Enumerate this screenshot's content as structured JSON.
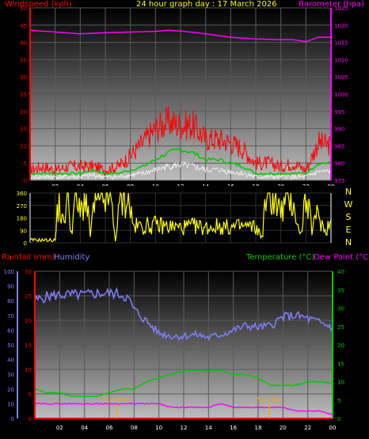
{
  "header": {
    "windspeed_label": "Windspeed (kph)",
    "title": "24 hour graph day : 17 March 2026",
    "barometer_label": "Barometer (hpa)"
  },
  "direction_labels": [
    "N",
    "W",
    "S",
    "E",
    "N"
  ],
  "bottom_header": {
    "rainfall_label": "Rainfall (mm)",
    "humidity_label": "Humidity",
    "temperature_label": "Temperature (°C)",
    "dewpoint_label": "Dew Point (°C)"
  },
  "annotations": {
    "sunrise": "Sun Rise",
    "sunset": "Sun Set"
  },
  "colors": {
    "wind_speed": "#ff0000",
    "wind_avg": "#00cc00",
    "wind_low": "#ffffff",
    "barometer": "#ff00ff",
    "direction": "#ffff00",
    "rainfall": "#ff0000",
    "humidity": "#8080ff",
    "temperature": "#00cc00",
    "dewpoint": "#ff00ff",
    "sun": "#ffa500"
  },
  "chart_data": [
    {
      "type": "line",
      "title": "24 hour graph day : 17 March 2026",
      "x_ticks": [
        "02",
        "04",
        "06",
        "08",
        "10",
        "12",
        "14",
        "16",
        "18",
        "20",
        "22",
        "00"
      ],
      "xlim": [
        0,
        24
      ],
      "y_left": {
        "label": "Windspeed (kph)",
        "ylim": [
          0,
          50
        ],
        "ticks": [
          0,
          5,
          10,
          15,
          20,
          25,
          30,
          35,
          40,
          45,
          50
        ]
      },
      "y_right": {
        "label": "Barometer (hpa)",
        "ylim": [
          975,
          1025
        ],
        "ticks": [
          975,
          980,
          985,
          990,
          995,
          1000,
          1005,
          1010,
          1015,
          1020,
          1025
        ]
      },
      "series": [
        {
          "name": "Windspeed (kph)",
          "axis": "left",
          "x": [
            0,
            1,
            2,
            3,
            4,
            5,
            6,
            7,
            8,
            9,
            10,
            11,
            12,
            13,
            14,
            15,
            16,
            17,
            18,
            19,
            20,
            21,
            22,
            23,
            24
          ],
          "y": [
            3,
            4,
            3,
            4,
            4,
            4,
            3,
            4,
            7,
            11,
            15,
            17,
            16,
            16,
            12,
            12,
            11,
            9,
            5,
            5,
            4,
            5,
            3,
            11,
            10
          ]
        },
        {
          "axis": "left",
          "x": [
            0,
            1,
            2,
            3,
            4,
            5,
            6,
            7,
            8,
            9,
            10,
            11,
            12,
            13,
            14,
            15,
            16,
            17,
            18,
            19,
            20,
            21,
            22,
            23,
            24
          ],
          "y": [
            2,
            2,
            2,
            2,
            2,
            3,
            2,
            2,
            3,
            4,
            6,
            8,
            9,
            8,
            6,
            6,
            5,
            4,
            2,
            2,
            2,
            2,
            2,
            5,
            5
          ]
        },
        {
          "name": "Barometer (hpa)",
          "axis": "right",
          "x": [
            0,
            2,
            4,
            6,
            8,
            10,
            11,
            12,
            14,
            16,
            18,
            20,
            21,
            22,
            23,
            24
          ],
          "y": [
            1018.5,
            1018,
            1017.5,
            1017.8,
            1018,
            1018.2,
            1018.5,
            1018.3,
            1017.5,
            1016.5,
            1016,
            1015.8,
            1015.8,
            1015.2,
            1016.5,
            1016.5
          ]
        }
      ]
    },
    {
      "type": "line",
      "x_ticks": [
        "02",
        "04",
        "06",
        "08",
        "10",
        "12",
        "14",
        "16",
        "18",
        "20",
        "22",
        "00"
      ],
      "xlim": [
        0,
        24
      ],
      "y_left": {
        "ylim": [
          0,
          360
        ],
        "ticks": [
          0,
          90,
          180,
          270,
          360
        ]
      },
      "series": [
        {
          "axis": "left",
          "x": [
            0,
            1,
            2,
            2.3,
            2.6,
            3,
            3.3,
            3.6,
            4,
            4.4,
            4.8,
            5.2,
            5.6,
            6,
            6.4,
            6.8,
            7.2,
            7.6,
            7.9,
            8.2,
            9,
            10,
            11,
            12,
            13,
            14,
            15,
            16,
            17,
            18,
            18.5,
            18.8,
            19.2,
            19.6,
            20,
            20.5,
            21,
            21.5,
            22,
            22.5,
            23,
            23.5,
            24
          ],
          "y": [
            20,
            20,
            20,
            340,
            120,
            350,
            60,
            340,
            200,
            350,
            60,
            330,
            250,
            350,
            340,
            20,
            300,
            340,
            320,
            120,
            120,
            130,
            120,
            110,
            120,
            110,
            120,
            110,
            120,
            110,
            40,
            300,
            350,
            320,
            200,
            350,
            320,
            40,
            320,
            100,
            220,
            80,
            160
          ]
        }
      ]
    },
    {
      "type": "line",
      "x_ticks": [
        "02",
        "04",
        "06",
        "08",
        "10",
        "12",
        "14",
        "16",
        "18",
        "20",
        "22",
        "00"
      ],
      "xlim": [
        0,
        24
      ],
      "y_axes": [
        {
          "label": "Humidity",
          "ylim": [
            0,
            100
          ],
          "ticks": [
            0,
            10,
            20,
            30,
            40,
            50,
            60,
            70,
            80,
            90,
            100
          ]
        },
        {
          "label": "Rainfall (mm)",
          "ylim": [
            0,
            30
          ],
          "ticks": [
            0,
            5,
            10,
            15,
            20,
            25,
            30
          ]
        },
        {
          "label": "Temperature (°C)",
          "ylim": [
            0,
            40
          ],
          "ticks": [
            0,
            5,
            10,
            15,
            20,
            25,
            30,
            35,
            40
          ]
        }
      ],
      "series": [
        {
          "name": "Humidity",
          "axis": "humidity",
          "x": [
            0,
            1,
            2,
            3,
            4,
            5,
            6,
            6.5,
            7,
            7.5,
            8,
            9,
            10,
            11,
            12,
            13,
            14,
            15,
            16,
            17,
            18,
            19,
            20,
            21,
            22,
            23,
            24
          ],
          "y": [
            80,
            83,
            84,
            84,
            84,
            85,
            85,
            85,
            84,
            82,
            74,
            66,
            58,
            56,
            56,
            57,
            55,
            57,
            60,
            63,
            62,
            63,
            69,
            70,
            68,
            65,
            62
          ]
        },
        {
          "name": "Temperature (°C)",
          "axis": "temperature",
          "x": [
            0,
            1,
            2,
            3,
            4,
            5,
            6,
            7,
            8,
            9,
            10,
            11,
            12,
            13,
            14,
            15,
            16,
            17,
            18,
            19,
            20,
            21,
            22,
            23,
            24
          ],
          "y": [
            8,
            7,
            7,
            6,
            6,
            6,
            7,
            8,
            8,
            10,
            11,
            12,
            13,
            13,
            13,
            13,
            12,
            12,
            11,
            9,
            9,
            9,
            10,
            10,
            9.5
          ]
        },
        {
          "name": "Dew Point (°C)",
          "axis": "temperature",
          "x": [
            0,
            1,
            2,
            3,
            4,
            5,
            6,
            7,
            8,
            9,
            10,
            11,
            12,
            13,
            14,
            15,
            16,
            17,
            18,
            19,
            20,
            21,
            22,
            23,
            24
          ],
          "y": [
            4,
            4,
            4,
            4,
            4,
            4,
            4,
            4,
            4,
            4,
            4,
            3,
            3,
            3,
            3,
            4,
            3,
            3,
            3,
            3,
            3,
            2,
            2,
            2,
            1
          ]
        },
        {
          "name": "Rainfall (mm)",
          "axis": "rainfall",
          "x": [
            0,
            24
          ],
          "y": [
            0,
            0
          ]
        }
      ],
      "annotations": [
        {
          "label": "Sun Rise",
          "x": 6.6
        },
        {
          "label": "Sun Set",
          "x": 18.9
        }
      ]
    }
  ]
}
